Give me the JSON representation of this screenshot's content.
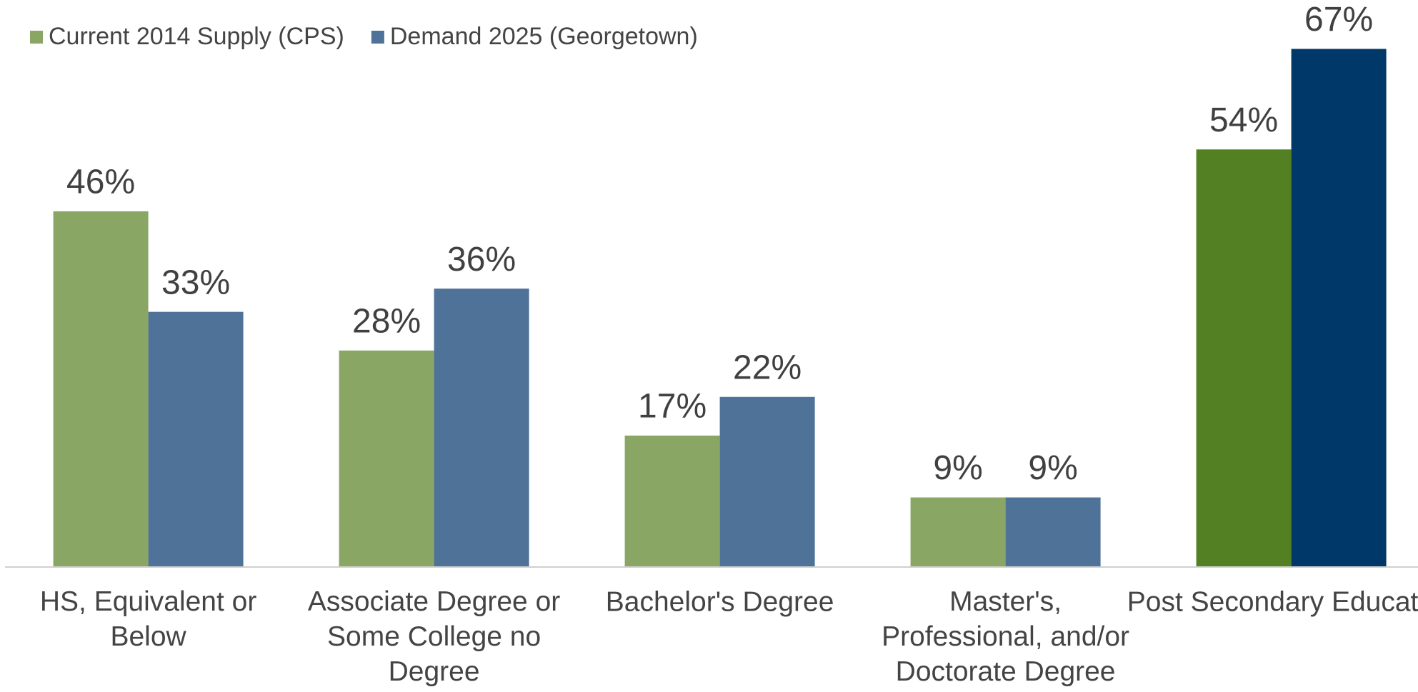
{
  "chart_data": {
    "type": "bar",
    "categories": [
      "HS, Equivalent or Below",
      "Associate Degree or Some College no Degree",
      "Bachelor's Degree",
      "Master's, Professional, and/or Doctorate Degree",
      "Post Secondary Education"
    ],
    "series": [
      {
        "name": "Current 2014 Supply (CPS)",
        "color": "#8aa664",
        "colors": [
          "#8aa664",
          "#8aa664",
          "#8aa664",
          "#8aa664",
          "#548024"
        ],
        "values": [
          46,
          28,
          17,
          9,
          54
        ],
        "value_labels": [
          "46%",
          "28%",
          "17%",
          "9%",
          "54%"
        ]
      },
      {
        "name": "Demand 2025 (Georgetown)",
        "color": "#4e7298",
        "colors": [
          "#4e7298",
          "#4e7298",
          "#4e7298",
          "#4e7298",
          "#003869"
        ],
        "values": [
          33,
          36,
          22,
          9,
          67
        ],
        "value_labels": [
          "33%",
          "36%",
          "22%",
          "9%",
          "67%"
        ]
      }
    ],
    "ylim": [
      0,
      70
    ],
    "legend": "top-left"
  }
}
